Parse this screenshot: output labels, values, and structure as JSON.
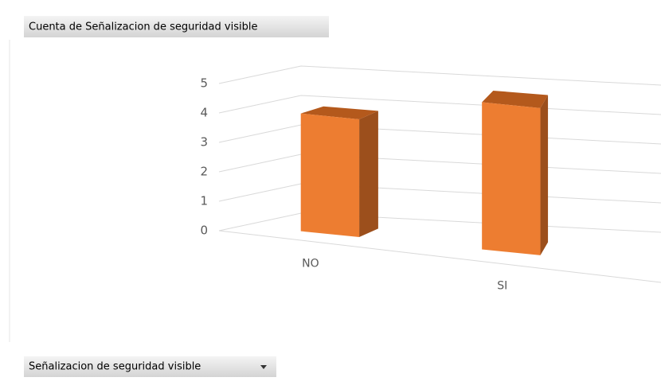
{
  "chart_data": {
    "type": "bar3d",
    "title": "Cuenta de Señalizacion de seguridad visible",
    "categories": [
      "NO",
      "SI"
    ],
    "values": [
      4,
      5
    ],
    "color": "#ed7d31",
    "ylim": [
      0,
      5
    ],
    "yticks": [
      0,
      1,
      2,
      3,
      4,
      5
    ],
    "grid": true,
    "field_button": "Señalizacion de seguridad visible"
  }
}
